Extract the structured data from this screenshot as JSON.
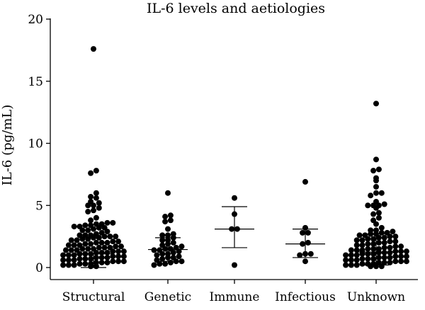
{
  "chart_data": {
    "type": "scatter",
    "title": "IL-6 levels and aetiologies",
    "xlabel": "",
    "ylabel": "IL-6 (pg/mL)",
    "ylim": [
      0,
      20
    ],
    "yticks": [
      0,
      5,
      10,
      15,
      20
    ],
    "grid": false,
    "legend": "none",
    "categories": [
      "Structural",
      "Genetic",
      "Immune",
      "Infectious",
      "Unknown"
    ],
    "series": [
      {
        "category": "Structural",
        "mean": 1.1,
        "lower": 0.0,
        "upper": 1.1,
        "values": [
          17.6,
          7.8,
          7.6,
          6.0,
          5.7,
          5.6,
          5.3,
          5.2,
          5.0,
          5.0,
          4.8,
          4.6,
          4.5,
          4.0,
          3.8,
          3.6,
          3.6,
          3.5,
          3.5,
          3.4,
          3.4,
          3.3,
          3.3,
          3.2,
          3.2,
          3.1,
          3.0,
          3.0,
          2.9,
          2.8,
          2.7,
          2.6,
          2.6,
          2.6,
          2.5,
          2.5,
          2.5,
          2.4,
          2.4,
          2.3,
          2.3,
          2.2,
          2.2,
          2.1,
          2.1,
          2.0,
          2.0,
          2.0,
          1.9,
          1.9,
          1.8,
          1.8,
          1.8,
          1.7,
          1.7,
          1.6,
          1.6,
          1.6,
          1.5,
          1.5,
          1.5,
          1.4,
          1.4,
          1.4,
          1.3,
          1.3,
          1.3,
          1.2,
          1.2,
          1.2,
          1.1,
          1.1,
          1.1,
          1.0,
          1.0,
          1.0,
          0.9,
          0.9,
          0.9,
          0.8,
          0.8,
          0.8,
          0.7,
          0.7,
          0.7,
          0.6,
          0.6,
          0.6,
          0.5,
          0.5,
          0.5,
          0.4,
          0.4,
          0.4,
          0.3,
          0.3,
          0.3,
          0.2,
          0.2,
          0.2,
          0.1,
          0.1
        ]
      },
      {
        "category": "Genetic",
        "mean": 1.45,
        "lower": 0.5,
        "upper": 2.4,
        "values": [
          6.0,
          4.2,
          4.1,
          3.8,
          3.7,
          3.1,
          2.7,
          2.6,
          2.6,
          2.4,
          2.2,
          2.2,
          2.0,
          1.9,
          1.8,
          1.7,
          1.6,
          1.5,
          1.5,
          1.4,
          1.4,
          1.3,
          1.2,
          1.1,
          1.1,
          1.0,
          0.9,
          0.8,
          0.8,
          0.7,
          0.6,
          0.5,
          0.5,
          0.4,
          0.3,
          0.3,
          0.2
        ]
      },
      {
        "category": "Immune",
        "mean": 3.1,
        "lower": 1.6,
        "upper": 4.9,
        "values": [
          5.6,
          4.3,
          3.1,
          3.1,
          0.2
        ]
      },
      {
        "category": "Infectious",
        "mean": 1.9,
        "lower": 0.8,
        "upper": 3.1,
        "values": [
          6.9,
          3.2,
          2.8,
          2.8,
          2.0,
          1.9,
          1.1,
          1.1,
          1.0,
          0.5
        ]
      },
      {
        "category": "Unknown",
        "mean": 1.25,
        "lower": 0.2,
        "upper": 2.7,
        "values": [
          13.2,
          8.7,
          7.9,
          7.8,
          7.2,
          7.0,
          6.5,
          6.0,
          6.0,
          5.8,
          5.3,
          5.1,
          5.0,
          5.0,
          5.0,
          4.8,
          4.4,
          4.3,
          4.0,
          3.8,
          3.5,
          3.2,
          3.0,
          3.0,
          2.9,
          2.8,
          2.8,
          2.7,
          2.7,
          2.6,
          2.6,
          2.5,
          2.5,
          2.4,
          2.4,
          2.3,
          2.3,
          2.2,
          2.2,
          2.1,
          2.1,
          2.0,
          2.0,
          1.9,
          1.9,
          1.8,
          1.8,
          1.7,
          1.7,
          1.6,
          1.6,
          1.5,
          1.5,
          1.5,
          1.4,
          1.4,
          1.4,
          1.3,
          1.3,
          1.3,
          1.2,
          1.2,
          1.2,
          1.1,
          1.1,
          1.1,
          1.0,
          1.0,
          1.0,
          0.9,
          0.9,
          0.9,
          0.8,
          0.8,
          0.8,
          0.7,
          0.7,
          0.7,
          0.6,
          0.6,
          0.6,
          0.5,
          0.5,
          0.5,
          0.4,
          0.4,
          0.4,
          0.3,
          0.3,
          0.3,
          0.2,
          0.2,
          0.2,
          0.1,
          0.1,
          0.1
        ]
      }
    ]
  }
}
